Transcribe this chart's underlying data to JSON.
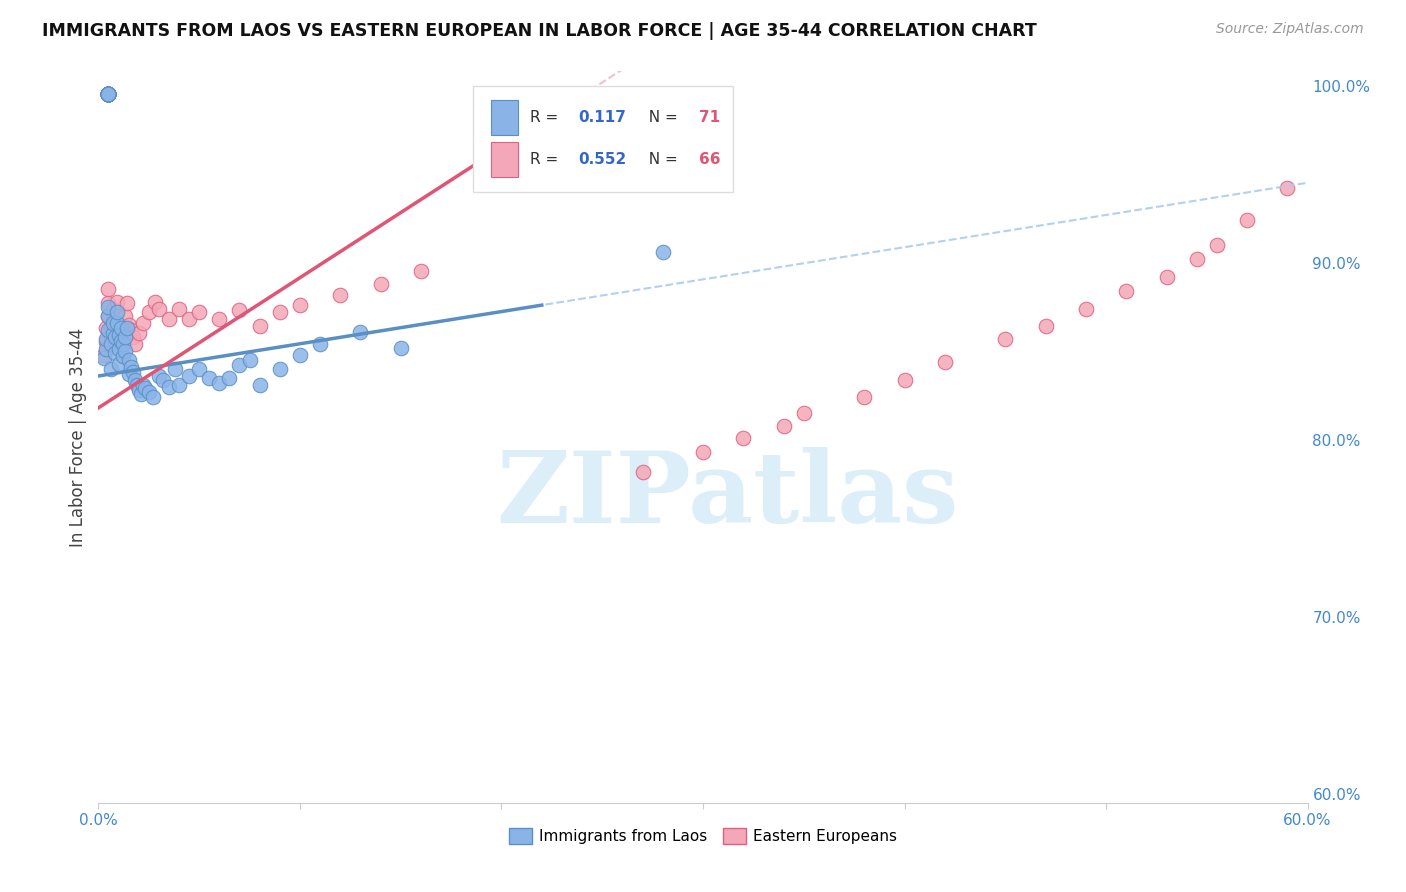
{
  "title": "IMMIGRANTS FROM LAOS VS EASTERN EUROPEAN IN LABOR FORCE | AGE 35-44 CORRELATION CHART",
  "source": "Source: ZipAtlas.com",
  "ylabel": "In Labor Force | Age 35-44",
  "xlim": [
    0.0,
    0.6
  ],
  "ylim": [
    0.595,
    1.008
  ],
  "xticks": [
    0.0,
    0.1,
    0.2,
    0.3,
    0.4,
    0.5,
    0.6
  ],
  "xticklabels": [
    "0.0%",
    "",
    "",
    "",
    "",
    "",
    "60.0%"
  ],
  "yticks": [
    0.6,
    0.7,
    0.8,
    0.9,
    1.0
  ],
  "yticklabels": [
    "60.0%",
    "70.0%",
    "80.0%",
    "90.0%",
    "100.0%"
  ],
  "laos_color": "#8ab4e8",
  "laos_edge_color": "#5a8fc4",
  "eastern_color": "#f4a7b8",
  "eastern_edge_color": "#e06080",
  "laos_line_color": "#5a8fc4",
  "eastern_line_color": "#e05575",
  "dashed_laos_color": "#a8ccee",
  "dashed_eastern_color": "#f0b8c8",
  "R_laos": 0.117,
  "N_laos": 71,
  "R_eastern": 0.552,
  "N_eastern": 66,
  "legend_R_color": "#3366cc",
  "legend_N_color": "#e05575",
  "watermark": "ZIPatlas",
  "watermark_color": "#dceef8",
  "grid_color": "#e8e8e8",
  "tick_color": "#4488cc",
  "laos_line_x0": 0.0,
  "laos_line_y0": 0.836,
  "laos_line_x1": 0.22,
  "laos_line_y1": 0.876,
  "eastern_line_x0": 0.0,
  "eastern_line_y0": 0.818,
  "eastern_line_x1": 0.2,
  "eastern_line_y1": 0.965,
  "laos_scatter_x": [
    0.003,
    0.004,
    0.004,
    0.005,
    0.005,
    0.005,
    0.006,
    0.006,
    0.007,
    0.007,
    0.008,
    0.008,
    0.009,
    0.009,
    0.01,
    0.01,
    0.01,
    0.011,
    0.011,
    0.012,
    0.012,
    0.013,
    0.013,
    0.014,
    0.015,
    0.015,
    0.016,
    0.017,
    0.018,
    0.019,
    0.02,
    0.021,
    0.022,
    0.023,
    0.025,
    0.027,
    0.03,
    0.032,
    0.035,
    0.038,
    0.04,
    0.045,
    0.05,
    0.055,
    0.06,
    0.065,
    0.07,
    0.075,
    0.08,
    0.09,
    0.1,
    0.11,
    0.13,
    0.15,
    0.005,
    0.005,
    0.005,
    0.005,
    0.005,
    0.005,
    0.005,
    0.005,
    0.005,
    0.005,
    0.005,
    0.005,
    0.005,
    0.005,
    0.005,
    0.005,
    0.28
  ],
  "laos_scatter_y": [
    0.846,
    0.851,
    0.857,
    0.862,
    0.87,
    0.875,
    0.84,
    0.854,
    0.86,
    0.866,
    0.849,
    0.858,
    0.866,
    0.872,
    0.843,
    0.851,
    0.859,
    0.856,
    0.863,
    0.847,
    0.854,
    0.85,
    0.858,
    0.863,
    0.837,
    0.845,
    0.841,
    0.838,
    0.834,
    0.831,
    0.828,
    0.826,
    0.831,
    0.829,
    0.827,
    0.824,
    0.836,
    0.834,
    0.83,
    0.84,
    0.831,
    0.836,
    0.84,
    0.835,
    0.832,
    0.835,
    0.842,
    0.845,
    0.831,
    0.84,
    0.848,
    0.854,
    0.861,
    0.852,
    0.995,
    0.995,
    0.995,
    0.995,
    0.995,
    0.995,
    0.995,
    0.995,
    0.995,
    0.995,
    0.995,
    0.995,
    0.995,
    0.995,
    0.995,
    0.995,
    0.906
  ],
  "eastern_scatter_x": [
    0.003,
    0.004,
    0.004,
    0.005,
    0.005,
    0.005,
    0.006,
    0.006,
    0.007,
    0.007,
    0.008,
    0.008,
    0.009,
    0.009,
    0.01,
    0.01,
    0.011,
    0.012,
    0.013,
    0.014,
    0.015,
    0.016,
    0.017,
    0.018,
    0.02,
    0.022,
    0.025,
    0.028,
    0.03,
    0.035,
    0.04,
    0.045,
    0.05,
    0.06,
    0.07,
    0.08,
    0.09,
    0.1,
    0.12,
    0.14,
    0.16,
    0.005,
    0.005,
    0.005,
    0.005,
    0.005,
    0.005,
    0.005,
    0.005,
    0.27,
    0.3,
    0.32,
    0.34,
    0.35,
    0.38,
    0.4,
    0.42,
    0.45,
    0.47,
    0.49,
    0.51,
    0.53,
    0.545,
    0.555,
    0.57,
    0.59
  ],
  "eastern_scatter_y": [
    0.848,
    0.855,
    0.863,
    0.87,
    0.877,
    0.885,
    0.858,
    0.864,
    0.868,
    0.874,
    0.861,
    0.867,
    0.872,
    0.878,
    0.855,
    0.862,
    0.856,
    0.863,
    0.87,
    0.877,
    0.865,
    0.862,
    0.858,
    0.854,
    0.86,
    0.866,
    0.872,
    0.878,
    0.874,
    0.868,
    0.874,
    0.868,
    0.872,
    0.868,
    0.873,
    0.864,
    0.872,
    0.876,
    0.882,
    0.888,
    0.895,
    0.995,
    0.995,
    0.995,
    0.995,
    0.995,
    0.995,
    0.995,
    0.995,
    0.782,
    0.793,
    0.801,
    0.808,
    0.815,
    0.824,
    0.834,
    0.844,
    0.857,
    0.864,
    0.874,
    0.884,
    0.892,
    0.902,
    0.91,
    0.924,
    0.942
  ]
}
